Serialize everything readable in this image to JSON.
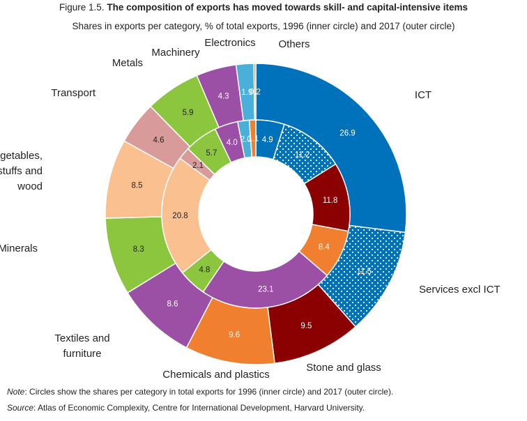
{
  "figure": {
    "number": "Figure 1.5.",
    "title": "The composition of exports has moved towards skill- and capital-intensive items",
    "subtitle": "Shares in exports per category, % of total exports, 1996 (inner circle) and 2017 (outer circle)"
  },
  "notes": {
    "note_label": "Note",
    "note_text": ": Circles show the shares per category in total exports for 1996 (inner circle) and 2017 (outer circle).",
    "source_label": "Source",
    "source_text": ": Atlas of Economic Complexity, Centre for International Development, Harvard University."
  },
  "chart_data": {
    "type": "pie",
    "subtype": "nested-donut",
    "rings": [
      "1996 (inner circle)",
      "2017 (outer circle)"
    ],
    "categories": [
      {
        "name": "ICT",
        "label_lines": [
          "ICT"
        ],
        "color": "#0072bc",
        "pattern": "solid",
        "inner": 4.9,
        "outer": 26.9
      },
      {
        "name": "Services excl ICT",
        "label_lines": [
          "Services excl ICT"
        ],
        "color": "#0072bc",
        "pattern": "dots",
        "inner": 11.2,
        "outer": 11.5
      },
      {
        "name": "Stone and glass",
        "label_lines": [
          "Stone and glass"
        ],
        "color": "#8b0000",
        "pattern": "solid",
        "inner": 11.8,
        "outer": 9.5
      },
      {
        "name": "Chemicals and plastics",
        "label_lines": [
          "Chemicals and plastics"
        ],
        "color": "#f07f2f",
        "pattern": "solid",
        "inner": 8.4,
        "outer": 9.6
      },
      {
        "name": "Textiles and furniture",
        "label_lines": [
          "Textiles and",
          "furniture"
        ],
        "color": "#9b4fa5",
        "pattern": "solid",
        "inner": 23.1,
        "outer": 8.6
      },
      {
        "name": "Minerals",
        "label_lines": [
          "Minerals"
        ],
        "color": "#8cc63f",
        "pattern": "solid",
        "inner": 4.8,
        "outer": 8.3
      },
      {
        "name": "Vegetables, foodstuffs and wood",
        "label_lines": [
          "Vegetables,",
          "foodstuffs and",
          "wood"
        ],
        "color": "#fbc08f",
        "pattern": "solid",
        "inner": 20.8,
        "outer": 8.5
      },
      {
        "name": "Transport",
        "label_lines": [
          "Transport"
        ],
        "color": "#d99a9a",
        "pattern": "solid",
        "inner": 2.1,
        "outer": 4.6
      },
      {
        "name": "Metals",
        "label_lines": [
          "Metals"
        ],
        "color": "#8cc63f",
        "pattern": "solid",
        "inner": 5.7,
        "outer": 5.9
      },
      {
        "name": "Machinery",
        "label_lines": [
          "Machinery"
        ],
        "color": "#9b4fa5",
        "pattern": "solid",
        "inner": 4.0,
        "outer": 4.3
      },
      {
        "name": "Electronics",
        "label_lines": [
          "Electronics"
        ],
        "color": "#4ab0d9",
        "pattern": "solid",
        "inner": 2.0,
        "outer": 1.9
      },
      {
        "name": "Others",
        "label_lines": [
          "Others"
        ],
        "color": "#f07f2f",
        "pattern": "solid",
        "inner": 1.1,
        "outer": 0.2
      }
    ]
  }
}
